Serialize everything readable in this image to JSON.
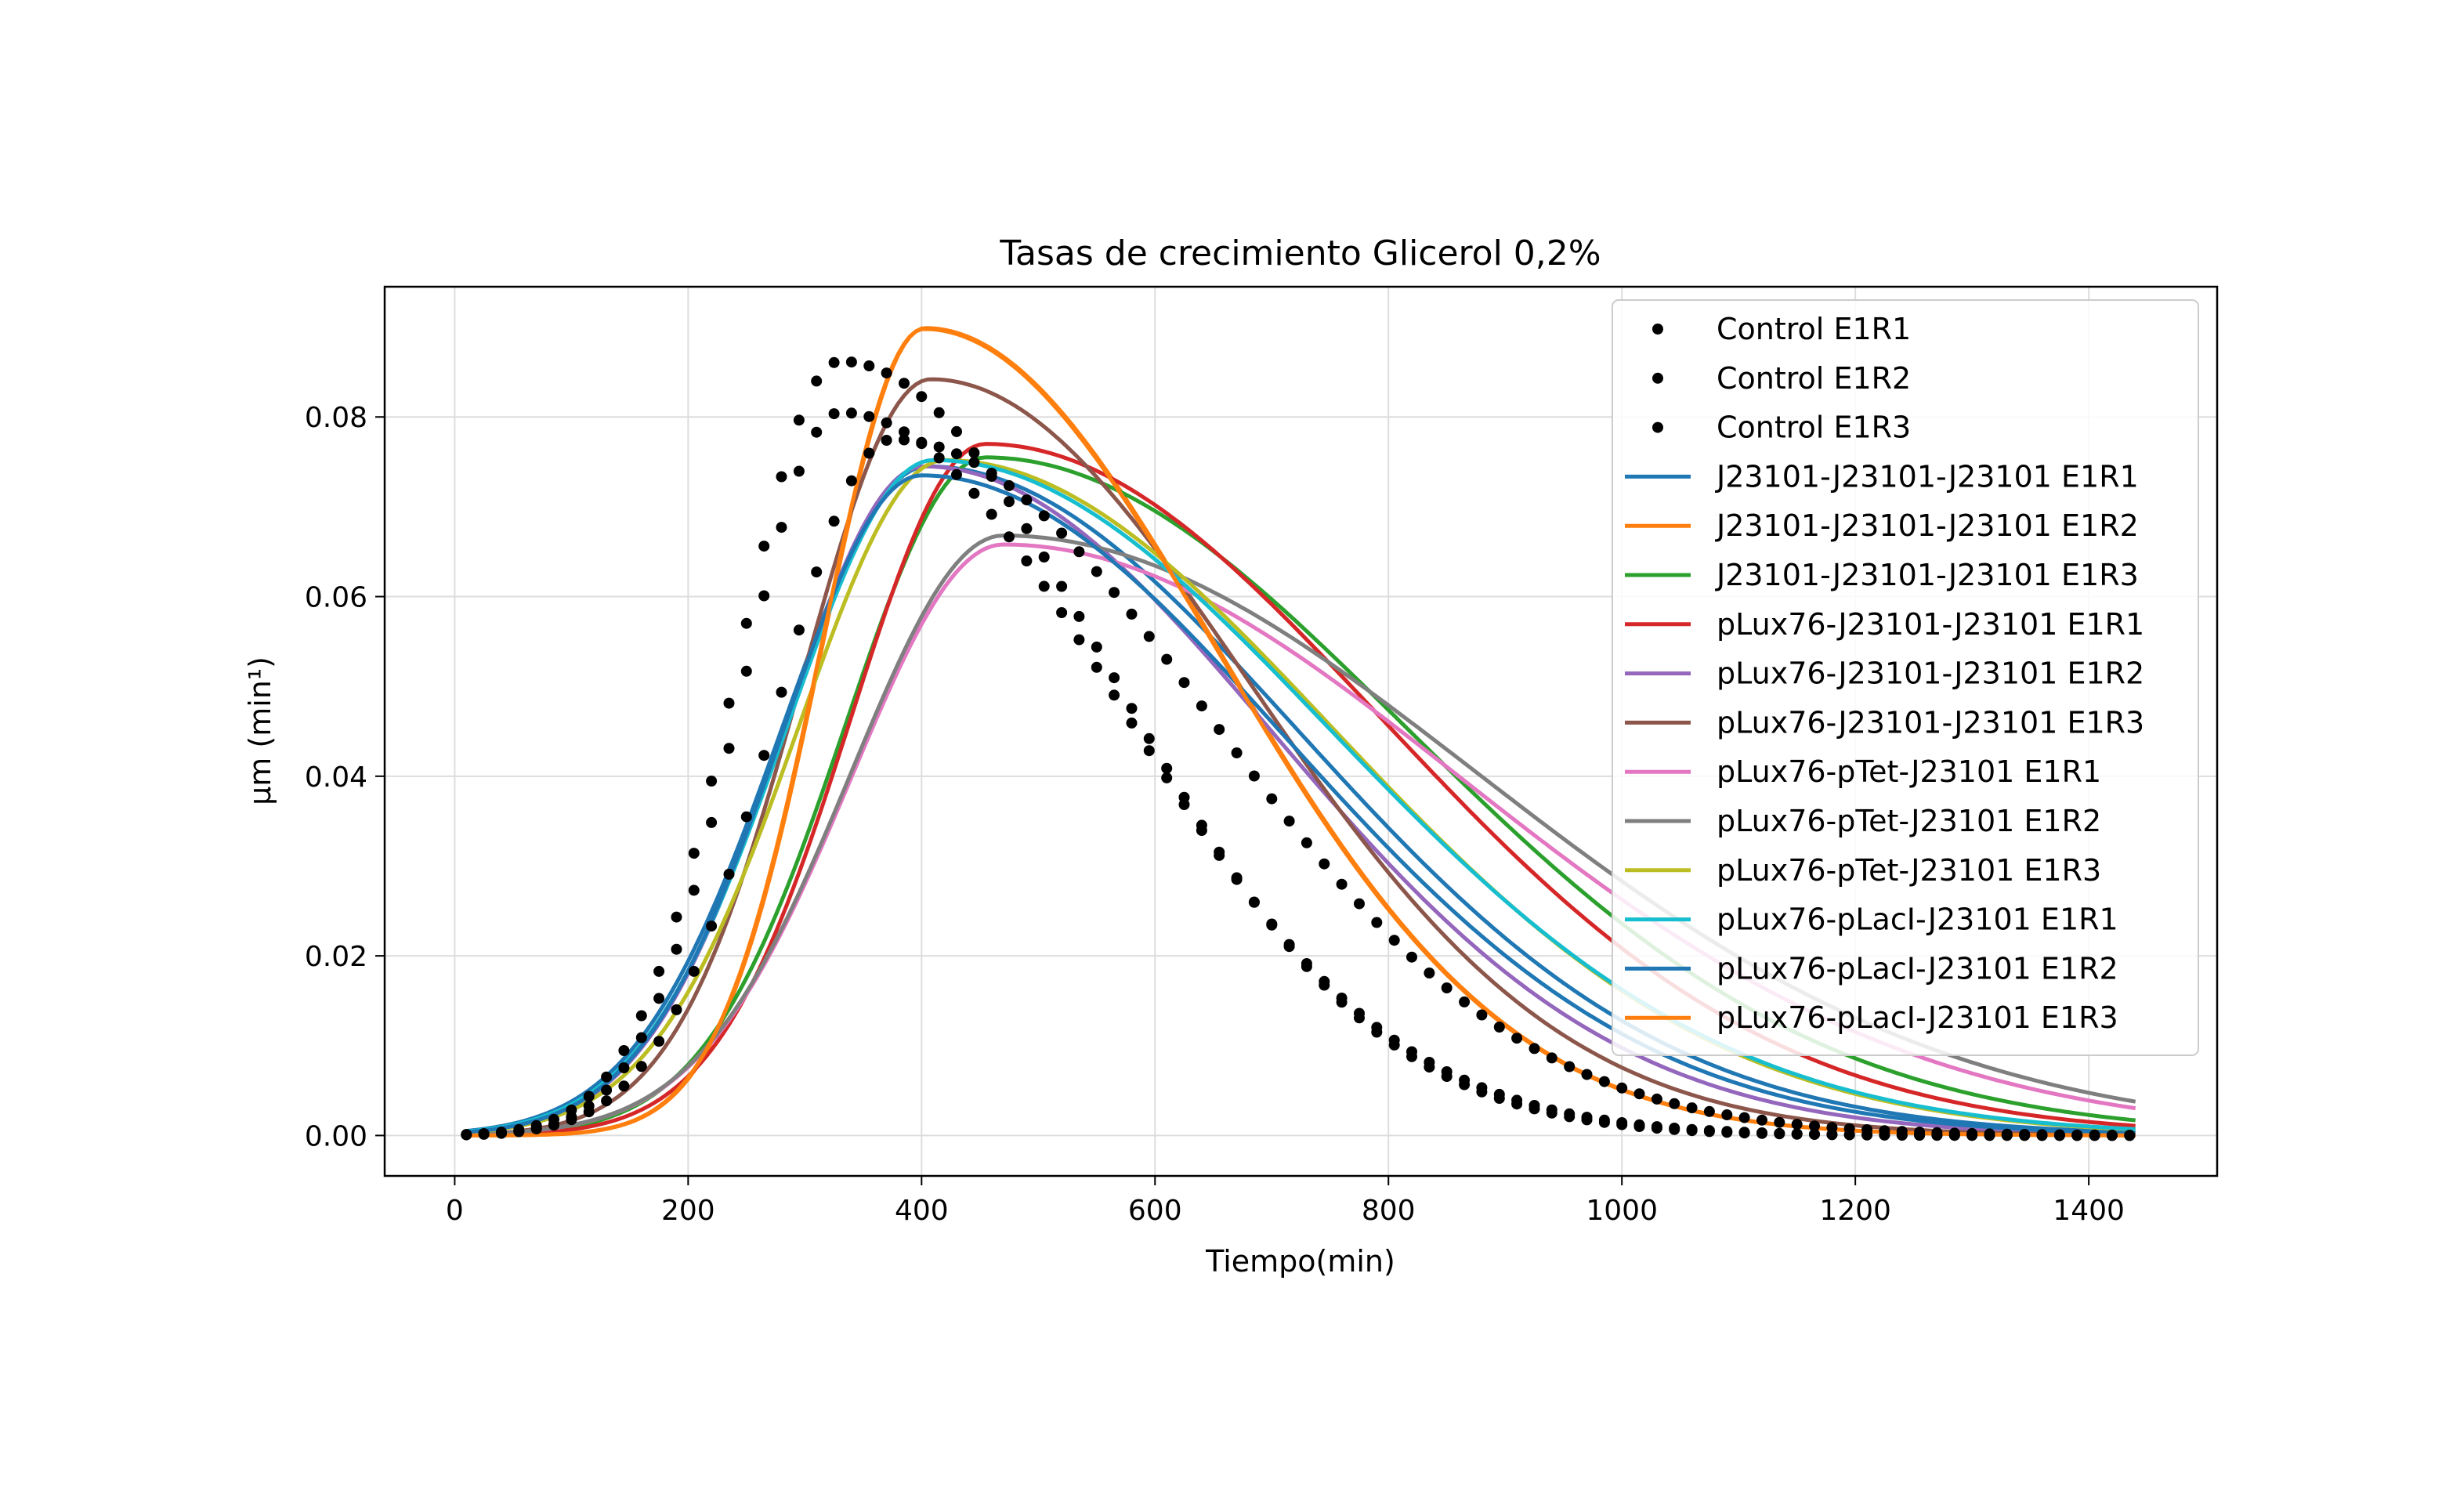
{
  "chart_data": {
    "type": "line",
    "title": "Tasas de crecimiento Glicerol 0,2%",
    "xlabel": "Tiempo(min)",
    "ylabel": "µm (min¹)",
    "xlim": [
      -60,
      1510
    ],
    "ylim": [
      -0.0045,
      0.0945
    ],
    "xticks": [
      0,
      200,
      400,
      600,
      800,
      1000,
      1200,
      1400
    ],
    "yticks": [
      0.0,
      0.02,
      0.04,
      0.06,
      0.08
    ],
    "xtick_labels": [
      "0",
      "200",
      "400",
      "600",
      "800",
      "1000",
      "1200",
      "1400"
    ],
    "ytick_labels": [
      "0.00",
      "0.02",
      "0.04",
      "0.06",
      "0.08"
    ],
    "grid": true,
    "legend_position": "top-right",
    "x_range_of_data": [
      10,
      1440
    ],
    "series": [
      {
        "name": "Control E1R1",
        "style": "dots",
        "color": "#000000",
        "peak_x": 330,
        "peak_y": 0.0862,
        "sigma_left": 88,
        "sigma_right": 170,
        "step": 15
      },
      {
        "name": "Control E1R2",
        "style": "dots",
        "color": "#000000",
        "peak_x": 330,
        "peak_y": 0.0805,
        "sigma_left": 85,
        "sigma_right": 175,
        "step": 15
      },
      {
        "name": "Control E1R3",
        "style": "dots",
        "color": "#000000",
        "peak_x": 375,
        "peak_y": 0.0775,
        "sigma_left": 100,
        "sigma_right": 200,
        "step": 15
      },
      {
        "name": "J23101-J23101-J23101 E1R1",
        "style": "line",
        "color": "#1f77b4",
        "peak_x": 405,
        "peak_y": 0.0745,
        "sigma_left": 125,
        "sigma_right": 235
      },
      {
        "name": "J23101-J23101-J23101 E1R2",
        "style": "line",
        "color": "#ff7f0e",
        "peak_x": 403,
        "peak_y": 0.0899,
        "sigma_left": 88,
        "sigma_right": 185
      },
      {
        "name": "J23101-J23101-J23101 E1R3",
        "style": "line",
        "color": "#2ca02c",
        "peak_x": 455,
        "peak_y": 0.0755,
        "sigma_left": 120,
        "sigma_right": 265
      },
      {
        "name": "pLux76-J23101-J23101 E1R1",
        "style": "line",
        "color": "#d62728",
        "peak_x": 455,
        "peak_y": 0.077,
        "sigma_left": 115,
        "sigma_right": 250
      },
      {
        "name": "pLux76-J23101-J23101 E1R2",
        "style": "line",
        "color": "#9467bd",
        "peak_x": 402,
        "peak_y": 0.0745,
        "sigma_left": 120,
        "sigma_right": 220
      },
      {
        "name": "pLux76-J23101-J23101 E1R3",
        "style": "line",
        "color": "#8c564b",
        "peak_x": 408,
        "peak_y": 0.0842,
        "sigma_left": 110,
        "sigma_right": 200
      },
      {
        "name": "pLux76-pTet-J23101 E1R1",
        "style": "line",
        "color": "#e377c2",
        "peak_x": 470,
        "peak_y": 0.0658,
        "sigma_left": 130,
        "sigma_right": 290
      },
      {
        "name": "pLux76-pTet-J23101 E1R2",
        "style": "line",
        "color": "#7f7f7f",
        "peak_x": 470,
        "peak_y": 0.0668,
        "sigma_left": 130,
        "sigma_right": 300
      },
      {
        "name": "pLux76-pTet-J23101 E1R3",
        "style": "line",
        "color": "#bcbd22",
        "peak_x": 420,
        "peak_y": 0.0752,
        "sigma_left": 125,
        "sigma_right": 245
      },
      {
        "name": "pLux76-pLacI-J23101 E1R1",
        "style": "line",
        "color": "#17becf",
        "peak_x": 410,
        "peak_y": 0.0752,
        "sigma_left": 125,
        "sigma_right": 250
      },
      {
        "name": "pLux76-pLacI-J23101 E1R2",
        "style": "line",
        "color": "#1f77b4",
        "peak_x": 400,
        "peak_y": 0.0735,
        "sigma_left": 120,
        "sigma_right": 230
      },
      {
        "name": "pLux76-pLacI-J23101 E1R3",
        "style": "line",
        "color": "#ff7f0e",
        "peak_x": 402,
        "peak_y": 0.0898,
        "sigma_left": 88,
        "sigma_right": 185
      }
    ]
  }
}
